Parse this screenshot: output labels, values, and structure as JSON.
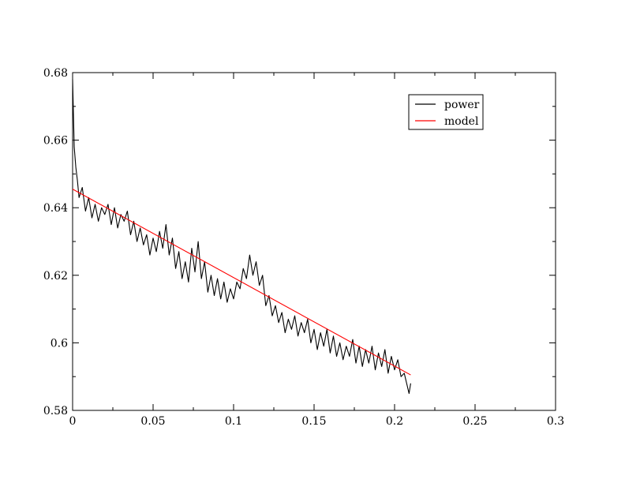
{
  "chart_data": {
    "type": "line",
    "title": "",
    "xlabel": "",
    "ylabel": "",
    "xlim": [
      0,
      0.3
    ],
    "ylim": [
      0.58,
      0.68
    ],
    "grid": false,
    "legend_position": "top-right",
    "x_ticks": [
      0,
      0.05,
      0.1,
      0.15,
      0.2,
      0.25,
      0.3
    ],
    "x_tick_labels": [
      "0",
      "0.05",
      "0.1",
      "0.15",
      "0.2",
      "0.25",
      "0.3"
    ],
    "y_ticks": [
      0.58,
      0.6,
      0.62,
      0.64,
      0.66,
      0.68
    ],
    "y_tick_labels": [
      "0.58",
      "0.6",
      "0.62",
      "0.64",
      "0.66",
      "0.68"
    ],
    "series": [
      {
        "name": "power",
        "color": "#000000",
        "x": [
          0.0,
          0.001,
          0.002,
          0.003,
          0.004,
          0.006,
          0.008,
          0.01,
          0.012,
          0.014,
          0.016,
          0.018,
          0.02,
          0.022,
          0.024,
          0.026,
          0.028,
          0.03,
          0.032,
          0.034,
          0.036,
          0.038,
          0.04,
          0.042,
          0.044,
          0.046,
          0.048,
          0.05,
          0.052,
          0.054,
          0.056,
          0.058,
          0.06,
          0.062,
          0.064,
          0.066,
          0.068,
          0.07,
          0.072,
          0.074,
          0.076,
          0.078,
          0.08,
          0.082,
          0.084,
          0.086,
          0.088,
          0.09,
          0.092,
          0.094,
          0.096,
          0.098,
          0.1,
          0.102,
          0.104,
          0.106,
          0.108,
          0.11,
          0.112,
          0.114,
          0.116,
          0.118,
          0.12,
          0.122,
          0.124,
          0.126,
          0.128,
          0.13,
          0.132,
          0.134,
          0.136,
          0.138,
          0.14,
          0.142,
          0.144,
          0.146,
          0.148,
          0.15,
          0.152,
          0.154,
          0.156,
          0.158,
          0.16,
          0.162,
          0.164,
          0.166,
          0.168,
          0.17,
          0.172,
          0.174,
          0.176,
          0.178,
          0.18,
          0.182,
          0.184,
          0.186,
          0.188,
          0.19,
          0.192,
          0.194,
          0.196,
          0.198,
          0.2,
          0.202,
          0.204,
          0.206,
          0.208,
          0.209,
          0.21
        ],
        "y": [
          0.678,
          0.658,
          0.652,
          0.648,
          0.643,
          0.646,
          0.639,
          0.643,
          0.637,
          0.641,
          0.636,
          0.64,
          0.638,
          0.641,
          0.635,
          0.64,
          0.634,
          0.638,
          0.636,
          0.639,
          0.632,
          0.636,
          0.63,
          0.634,
          0.629,
          0.632,
          0.626,
          0.631,
          0.627,
          0.633,
          0.628,
          0.635,
          0.626,
          0.631,
          0.622,
          0.627,
          0.619,
          0.624,
          0.618,
          0.628,
          0.621,
          0.63,
          0.619,
          0.624,
          0.615,
          0.62,
          0.614,
          0.619,
          0.613,
          0.618,
          0.612,
          0.616,
          0.613,
          0.618,
          0.616,
          0.622,
          0.619,
          0.626,
          0.62,
          0.624,
          0.617,
          0.62,
          0.611,
          0.614,
          0.608,
          0.611,
          0.606,
          0.609,
          0.603,
          0.607,
          0.604,
          0.608,
          0.602,
          0.606,
          0.603,
          0.607,
          0.6,
          0.604,
          0.598,
          0.603,
          0.599,
          0.604,
          0.597,
          0.602,
          0.596,
          0.6,
          0.595,
          0.599,
          0.596,
          0.601,
          0.594,
          0.599,
          0.593,
          0.598,
          0.594,
          0.599,
          0.592,
          0.597,
          0.593,
          0.598,
          0.591,
          0.596,
          0.592,
          0.595,
          0.59,
          0.591,
          0.587,
          0.585,
          0.588
        ]
      },
      {
        "name": "model",
        "color": "#ff0000",
        "x": [
          0.0,
          0.21
        ],
        "y": [
          0.6455,
          0.5905
        ]
      }
    ]
  }
}
